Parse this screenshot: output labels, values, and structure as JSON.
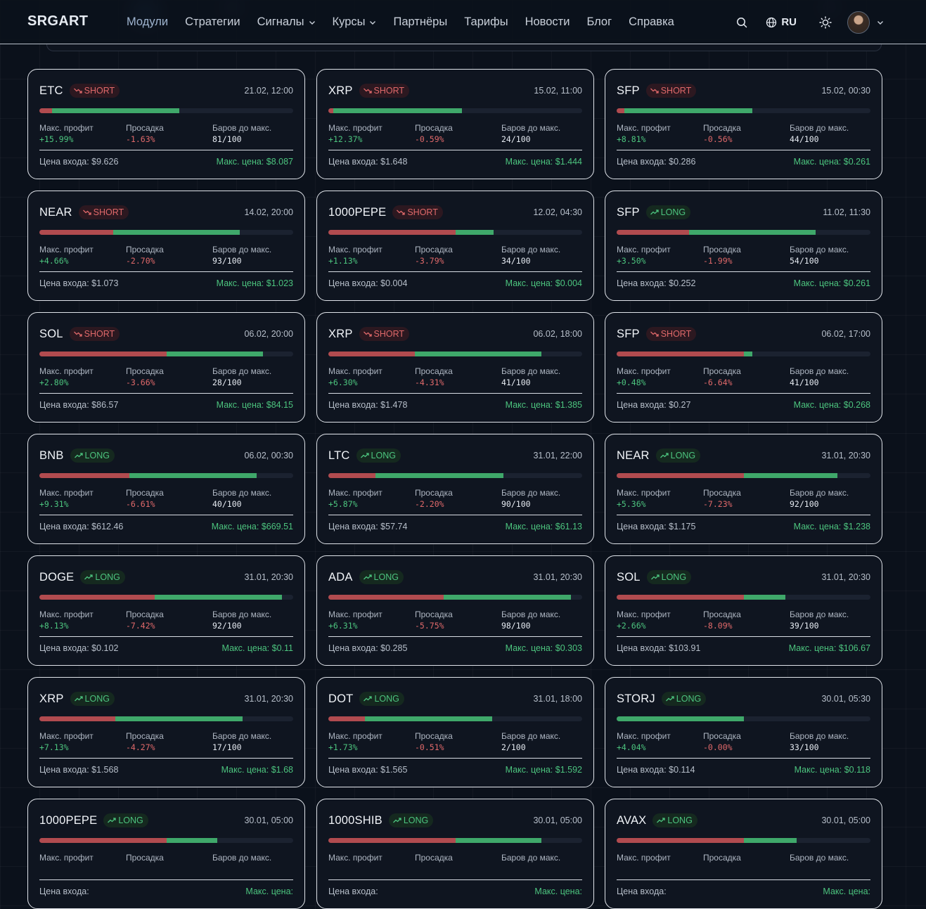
{
  "header": {
    "logo": "SRGART",
    "nav": [
      {
        "label": "Модули",
        "active": true,
        "dropdown": false
      },
      {
        "label": "Стратегии",
        "active": false,
        "dropdown": false
      },
      {
        "label": "Сигналы",
        "active": false,
        "dropdown": true
      },
      {
        "label": "Курсы",
        "active": false,
        "dropdown": true
      },
      {
        "label": "Партнёры",
        "active": false,
        "dropdown": false
      },
      {
        "label": "Тарифы",
        "active": false,
        "dropdown": false
      },
      {
        "label": "Новости",
        "active": false,
        "dropdown": false
      },
      {
        "label": "Блог",
        "active": false,
        "dropdown": false
      },
      {
        "label": "Справка",
        "active": false,
        "dropdown": false
      }
    ],
    "language": "RU",
    "icons": {
      "search": "search-icon",
      "globe": "globe-icon",
      "theme": "sun-icon",
      "avatar": "user-avatar"
    }
  },
  "labels": {
    "max_profit": "Макс. профит",
    "drawdown": "Просадка",
    "bars_to_max": "Баров до макс.",
    "entry_price": "Цена входа:",
    "max_price": "Макс. цена:"
  },
  "colors": {
    "short": "#e0696a",
    "long": "#4cc47e",
    "bar_red": "#b14b4f",
    "bar_green": "#3fa86a"
  },
  "signals": [
    {
      "symbol": "ETC",
      "side": "SHORT",
      "date": "21.02, 12:00",
      "red": 0.05,
      "green": 0.55,
      "max_profit": "+15.99%",
      "drawdown": "-1.63%",
      "bars": "81/100",
      "entry": "$9.626",
      "max_price": "$8.087"
    },
    {
      "symbol": "XRP",
      "side": "SHORT",
      "date": "15.02, 11:00",
      "red": 0.02,
      "green": 0.525,
      "max_profit": "+12.37%",
      "drawdown": "-0.59%",
      "bars": "24/100",
      "entry": "$1.648",
      "max_price": "$1.444"
    },
    {
      "symbol": "SFP",
      "side": "SHORT",
      "date": "15.02, 00:30",
      "red": 0.03,
      "green": 0.535,
      "max_profit": "+8.81%",
      "drawdown": "-0.56%",
      "bars": "44/100",
      "entry": "$0.286",
      "max_price": "$0.261"
    },
    {
      "symbol": "NEAR",
      "side": "SHORT",
      "date": "14.02, 20:00",
      "red": 0.29,
      "green": 0.79,
      "max_profit": "+4.66%",
      "drawdown": "-2.70%",
      "bars": "93/100",
      "entry": "$1.073",
      "max_price": "$1.023"
    },
    {
      "symbol": "1000PEPE",
      "side": "SHORT",
      "date": "12.02, 04:30",
      "red": 0.5,
      "green": 0.65,
      "max_profit": "+1.13%",
      "drawdown": "-3.79%",
      "bars": "34/100",
      "entry": "$0.004",
      "max_price": "$0.004"
    },
    {
      "symbol": "SFP",
      "side": "LONG",
      "date": "11.02, 11:30",
      "red": 0.285,
      "green": 0.785,
      "max_profit": "+3.50%",
      "drawdown": "-1.99%",
      "bars": "54/100",
      "entry": "$0.252",
      "max_price": "$0.261"
    },
    {
      "symbol": "SOL",
      "side": "SHORT",
      "date": "06.02, 20:00",
      "red": 0.5,
      "green": 0.88,
      "max_profit": "+2.80%",
      "drawdown": "-3.66%",
      "bars": "28/100",
      "entry": "$86.57",
      "max_price": "$84.15"
    },
    {
      "symbol": "XRP",
      "side": "SHORT",
      "date": "06.02, 18:00",
      "red": 0.34,
      "green": 0.84,
      "max_profit": "+6.30%",
      "drawdown": "-4.31%",
      "bars": "41/100",
      "entry": "$1.478",
      "max_price": "$1.385"
    },
    {
      "symbol": "SFP",
      "side": "SHORT",
      "date": "06.02, 17:00",
      "red": 0.5,
      "green": 0.535,
      "max_profit": "+0.48%",
      "drawdown": "-6.64%",
      "bars": "41/100",
      "entry": "$0.27",
      "max_price": "$0.268"
    },
    {
      "symbol": "BNB",
      "side": "LONG",
      "date": "06.02, 00:30",
      "red": 0.355,
      "green": 0.855,
      "max_profit": "+9.31%",
      "drawdown": "-6.61%",
      "bars": "40/100",
      "entry": "$612.46",
      "max_price": "$669.51"
    },
    {
      "symbol": "LTC",
      "side": "LONG",
      "date": "31.01, 22:00",
      "red": 0.185,
      "green": 0.69,
      "max_profit": "+5.87%",
      "drawdown": "-2.20%",
      "bars": "90/100",
      "entry": "$57.74",
      "max_price": "$61.13"
    },
    {
      "symbol": "NEAR",
      "side": "LONG",
      "date": "31.01, 20:30",
      "red": 0.5,
      "green": 0.87,
      "max_profit": "+5.36%",
      "drawdown": "-7.23%",
      "bars": "92/100",
      "entry": "$1.175",
      "max_price": "$1.238"
    },
    {
      "symbol": "DOGE",
      "side": "LONG",
      "date": "31.01, 20:30",
      "red": 0.455,
      "green": 0.955,
      "max_profit": "+8.13%",
      "drawdown": "-7.42%",
      "bars": "92/100",
      "entry": "$0.102",
      "max_price": "$0.11"
    },
    {
      "symbol": "ADA",
      "side": "LONG",
      "date": "31.01, 20:30",
      "red": 0.455,
      "green": 0.955,
      "max_profit": "+6.31%",
      "drawdown": "-5.75%",
      "bars": "98/100",
      "entry": "$0.285",
      "max_price": "$0.303"
    },
    {
      "symbol": "SOL",
      "side": "LONG",
      "date": "31.01, 20:30",
      "red": 0.5,
      "green": 0.665,
      "max_profit": "+2.66%",
      "drawdown": "-8.09%",
      "bars": "39/100",
      "entry": "$103.91",
      "max_price": "$106.67"
    },
    {
      "symbol": "XRP",
      "side": "LONG",
      "date": "31.01, 20:30",
      "red": 0.3,
      "green": 0.8,
      "max_profit": "+7.13%",
      "drawdown": "-4.27%",
      "bars": "17/100",
      "entry": "$1.568",
      "max_price": "$1.68"
    },
    {
      "symbol": "DOT",
      "side": "LONG",
      "date": "31.01, 18:00",
      "red": 0.145,
      "green": 0.645,
      "max_profit": "+1.73%",
      "drawdown": "-0.51%",
      "bars": "2/100",
      "entry": "$1.565",
      "max_price": "$1.592"
    },
    {
      "symbol": "STORJ",
      "side": "LONG",
      "date": "30.01, 05:30",
      "red": 0.0,
      "green": 0.5,
      "max_profit": "+4.04%",
      "drawdown": "-0.00%",
      "bars": "33/100",
      "entry": "$0.114",
      "max_price": "$0.118"
    },
    {
      "symbol": "1000PEPE",
      "side": "LONG",
      "date": "30.01, 05:00",
      "red": 0.5,
      "green": 0.7,
      "max_profit": "",
      "drawdown": "",
      "bars": "",
      "entry": "",
      "max_price": ""
    },
    {
      "symbol": "1000SHIB",
      "side": "LONG",
      "date": "30.01, 05:00",
      "red": 0.5,
      "green": 0.84,
      "max_profit": "",
      "drawdown": "",
      "bars": "",
      "entry": "",
      "max_price": ""
    },
    {
      "symbol": "AVAX",
      "side": "LONG",
      "date": "30.01, 05:00",
      "red": 0.5,
      "green": 0.71,
      "max_profit": "",
      "drawdown": "",
      "bars": "",
      "entry": "",
      "max_price": ""
    }
  ]
}
